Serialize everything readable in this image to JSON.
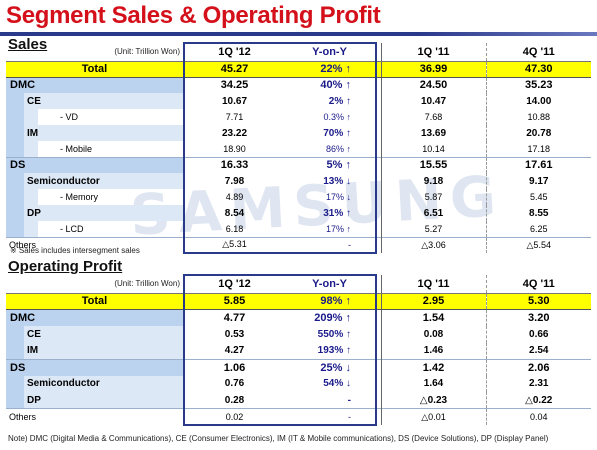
{
  "title": "Segment Sales & Operating Profit",
  "sales_heading": "Sales",
  "op_heading": "Operating Profit",
  "unit": "(Unit: Trillion Won)",
  "columns": {
    "q1_12": "1Q '12",
    "yoy": "Y-on-Y",
    "q1_11": "1Q '11",
    "q4_11": "4Q '11"
  },
  "sales_footnote": "※ Sales includes intersegment sales",
  "note": "Note)  DMC (Digital Media & Communications),   CE (Consumer Electronics), IM (IT & Mobile communications),   DS (Device Solutions), DP (Display Panel)",
  "watermark": "SAMSUNG",
  "sales_rows": [
    {
      "label": "Total",
      "kind": "total",
      "q1_12": "45.27",
      "yoy": "22% ↑",
      "q1_11": "36.99",
      "q4_11": "47.30"
    },
    {
      "label": "DMC",
      "kind": "seg",
      "q1_12": "34.25",
      "yoy": "40% ↑",
      "q1_11": "24.50",
      "q4_11": "35.23"
    },
    {
      "label": "CE",
      "kind": "sub",
      "q1_12": "10.67",
      "yoy": "2% ↑",
      "q1_11": "10.47",
      "q4_11": "14.00"
    },
    {
      "label": "- VD",
      "kind": "det",
      "q1_12": "7.71",
      "yoy": "0.3% ↑",
      "q1_11": "7.68",
      "q4_11": "10.88"
    },
    {
      "label": "IM",
      "kind": "sub",
      "q1_12": "23.22",
      "yoy": "70% ↑",
      "q1_11": "13.69",
      "q4_11": "20.78"
    },
    {
      "label": "- Mobile",
      "kind": "det",
      "q1_12": "18.90",
      "yoy": "86% ↑",
      "q1_11": "10.14",
      "q4_11": "17.18"
    },
    {
      "label": "DS",
      "kind": "seg",
      "q1_12": "16.33",
      "yoy": "5% ↑",
      "q1_11": "15.55",
      "q4_11": "17.61"
    },
    {
      "label": "Semiconductor",
      "kind": "sub",
      "q1_12": "7.98",
      "yoy": "13% ↓",
      "q1_11": "9.18",
      "q4_11": "9.17"
    },
    {
      "label": "- Memory",
      "kind": "det",
      "q1_12": "4.89",
      "yoy": "17% ↓",
      "q1_11": "5.87",
      "q4_11": "5.45"
    },
    {
      "label": "DP",
      "kind": "sub",
      "q1_12": "8.54",
      "yoy": "31% ↑",
      "q1_11": "6.51",
      "q4_11": "8.55"
    },
    {
      "label": "- LCD",
      "kind": "det",
      "q1_12": "6.18",
      "yoy": "17% ↑",
      "q1_11": "5.27",
      "q4_11": "6.25"
    },
    {
      "label": "Others",
      "kind": "other",
      "q1_12": "△5.31",
      "yoy": "-",
      "q1_11": "△3.06",
      "q4_11": "△5.54"
    }
  ],
  "op_rows": [
    {
      "label": "Total",
      "kind": "total",
      "q1_12": "5.85",
      "yoy": "98% ↑",
      "q1_11": "2.95",
      "q4_11": "5.30"
    },
    {
      "label": "DMC",
      "kind": "seg",
      "q1_12": "4.77",
      "yoy": "209% ↑",
      "q1_11": "1.54",
      "q4_11": "3.20"
    },
    {
      "label": "CE",
      "kind": "sub",
      "q1_12": "0.53",
      "yoy": "550% ↑",
      "q1_11": "0.08",
      "q4_11": "0.66"
    },
    {
      "label": "IM",
      "kind": "sub",
      "q1_12": "4.27",
      "yoy": "193% ↑",
      "q1_11": "1.46",
      "q4_11": "2.54"
    },
    {
      "label": "DS",
      "kind": "seg",
      "q1_12": "1.06",
      "yoy": "25% ↓",
      "q1_11": "1.42",
      "q4_11": "2.06"
    },
    {
      "label": "Semiconductor",
      "kind": "sub",
      "q1_12": "0.76",
      "yoy": "54% ↓",
      "q1_11": "1.64",
      "q4_11": "2.31"
    },
    {
      "label": "DP",
      "kind": "sub",
      "q1_12": "0.28",
      "yoy": "-",
      "q1_11": "△0.23",
      "q4_11": "△0.22"
    },
    {
      "label": "Others",
      "kind": "other",
      "q1_12": "0.02",
      "yoy": "-",
      "q1_11": "△0.01",
      "q4_11": "0.04"
    }
  ]
}
